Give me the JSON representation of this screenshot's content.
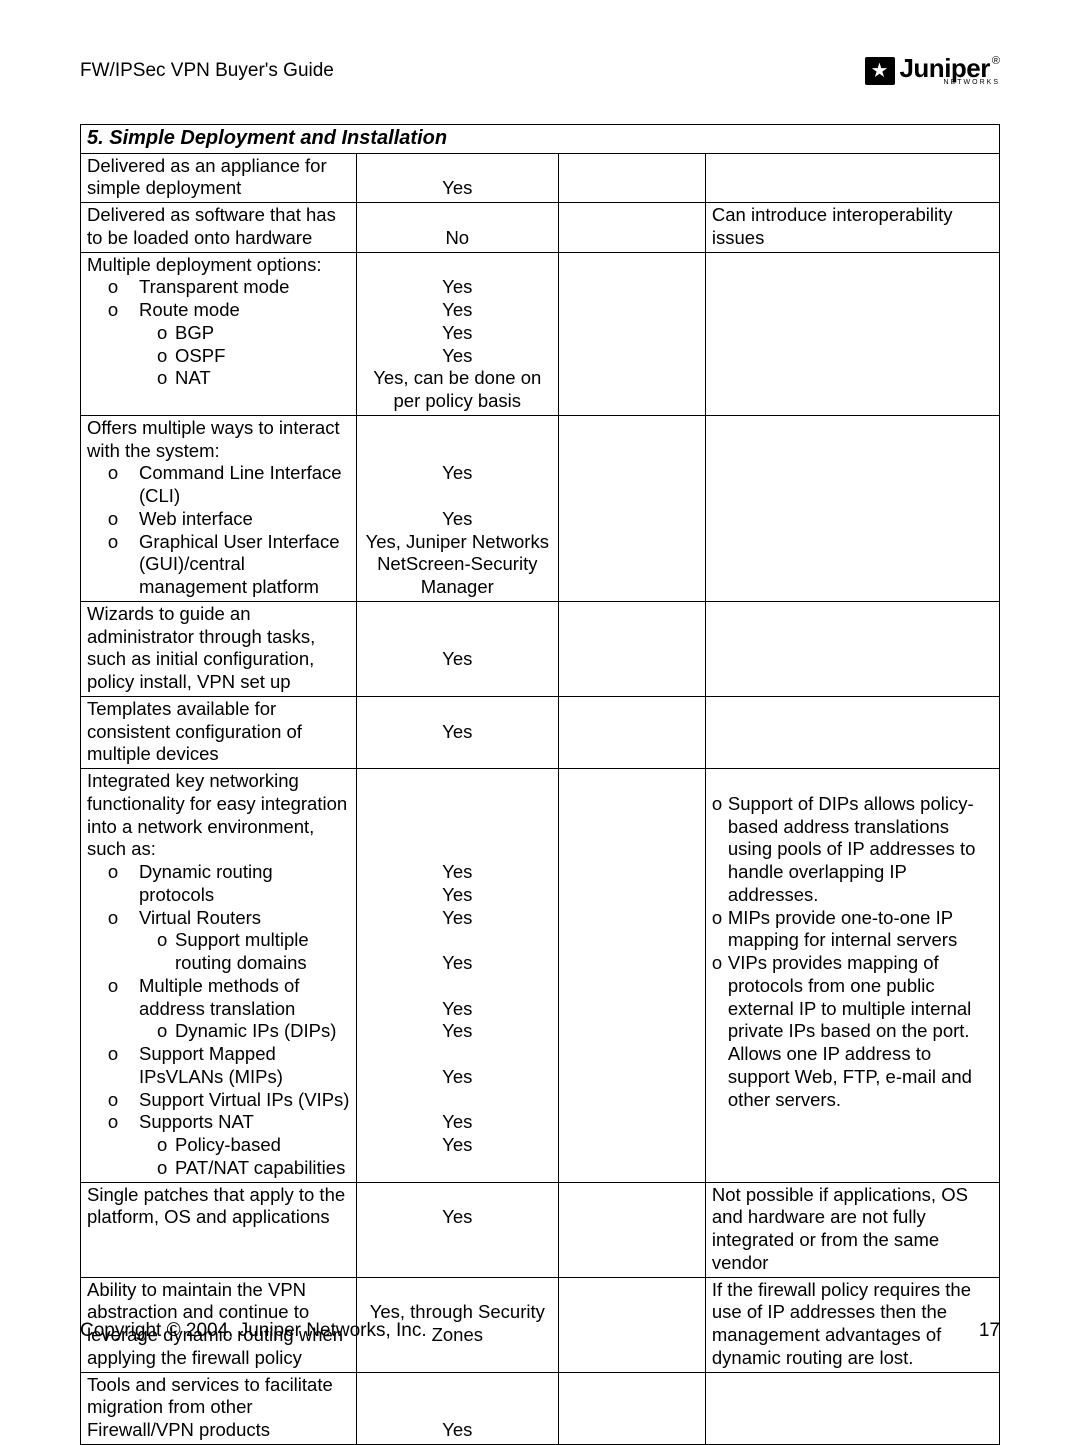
{
  "header": {
    "doc_title": "FW/IPSec VPN Buyer's Guide",
    "logo_text": "Juniper",
    "logo_sub": "NETWORKS"
  },
  "section": {
    "title": "5. Simple Deployment and Installation"
  },
  "rows": {
    "r1": {
      "feature": "Delivered as an appliance for simple deployment",
      "value": "Yes",
      "notes": ""
    },
    "r2": {
      "feature": "Delivered as software that has to be loaded onto hardware",
      "value": "No",
      "notes": "Can introduce interoperability issues"
    },
    "r3": {
      "intro": "Multiple deployment options:",
      "b_transparent": "Transparent mode",
      "b_route": "Route mode",
      "b_bgp": "BGP",
      "b_ospf": "OSPF",
      "b_nat": "NAT",
      "v1": "Yes",
      "v2": "Yes",
      "v3": "Yes",
      "v4": "Yes",
      "v5": "Yes, can be done on per policy basis"
    },
    "r4": {
      "intro": "Offers multiple ways to interact with the system:",
      "b_cli": "Command Line Interface (CLI)",
      "b_web": "Web interface",
      "b_gui": "Graphical User Interface (GUI)/central management platform",
      "v1": "Yes",
      "v2": "Yes",
      "v3": "Yes, Juniper Networks NetScreen-Security Manager"
    },
    "r5": {
      "feature": "Wizards to guide an administrator through tasks, such as initial configuration, policy install, VPN set up",
      "value": "Yes"
    },
    "r6": {
      "feature": "Templates available for consistent configuration of multiple devices",
      "value": "Yes"
    },
    "r7": {
      "intro": "Integrated key networking functionality for easy integration into a network environment, such as:",
      "b_dyn": "Dynamic routing protocols",
      "b_vr": "Virtual Routers",
      "b_vr_sub": "Support multiple routing domains",
      "b_addr": "Multiple methods of address translation",
      "b_addr_sub": "Dynamic IPs (DIPs)",
      "b_mip": "Support Mapped IPsVLANs (MIPs)",
      "b_vip": "Support Virtual IPs (VIPs)",
      "b_nat": "Supports NAT",
      "b_nat_sub1": "Policy-based",
      "b_nat_sub2": "PAT/NAT capabilities",
      "v_dyn": "Yes",
      "v_vr": "Yes",
      "v_vr_sub": "Yes",
      "v_addr": "Yes",
      "v_addr_sub": "Yes",
      "v_mip": "Yes",
      "v_vip": "Yes",
      "v_nat_sub1": "Yes",
      "v_nat_sub2": "Yes",
      "note1": "Support of DIPs allows policy-based address translations using pools of IP addresses to handle overlapping IP addresses.",
      "note2": "MIPs provide one-to-one IP mapping for internal servers",
      "note3": "VIPs provides mapping of protocols from one public external IP to multiple internal private IPs based on the port. Allows one IP address to support Web, FTP, e-mail and other servers."
    },
    "r8": {
      "feature": "Single patches that apply to the platform, OS and applications",
      "value": "Yes",
      "notes": "Not possible if applications, OS and hardware are not fully integrated or from the same vendor"
    },
    "r9": {
      "feature": "Ability to maintain the VPN abstraction and continue to leverage dynamic routing when applying the firewall policy",
      "value": "Yes, through Security Zones",
      "notes": "If the firewall policy requires the use of IP addresses then the management advantages of dynamic routing are lost."
    },
    "r10": {
      "feature": "Tools and services to facilitate migration from other Firewall/VPN products",
      "value": "Yes"
    }
  },
  "footer": {
    "copyright": "Copyright © 2004, Juniper Networks, Inc.",
    "page": "17"
  }
}
